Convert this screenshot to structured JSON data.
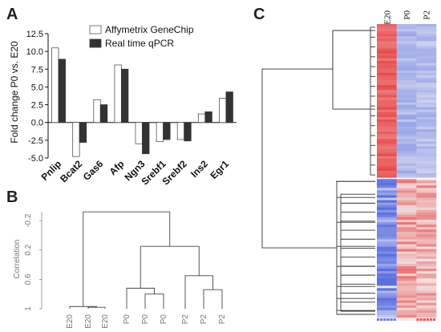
{
  "panels": {
    "a_label": "A",
    "b_label": "B",
    "c_label": "C"
  },
  "chart_data": [
    {
      "panel": "A",
      "type": "bar",
      "ylabel": "Fold change P0 vs. E20",
      "ylim": [
        -5.0,
        12.5
      ],
      "yticks": [
        -5.0,
        -2.5,
        0.0,
        2.5,
        5.0,
        7.5,
        10.0,
        12.5
      ],
      "ytick_labels": [
        "-5.0",
        "-2.5",
        "0.0",
        "2.5",
        "5.0",
        "7.5",
        "10.0",
        "12.5"
      ],
      "categories": [
        "Pnlip",
        "Bcat2",
        "Gas6",
        "Afp",
        "Ngn3",
        "Srebf1",
        "Srebf2",
        "Ins2",
        "Egr1"
      ],
      "series": [
        {
          "name": "Affymetrix GeneChip",
          "color": "#ffffff",
          "values": [
            10.5,
            -4.8,
            3.2,
            8.1,
            -3.0,
            -2.7,
            -2.4,
            1.2,
            3.4
          ]
        },
        {
          "name": "Real time qPCR",
          "color": "#333333",
          "values": [
            8.9,
            -2.8,
            2.5,
            7.5,
            -4.4,
            -2.4,
            -2.6,
            1.5,
            4.3
          ]
        }
      ],
      "legend": "top-right"
    },
    {
      "panel": "B",
      "type": "dendrogram",
      "ylabel": "Correlation",
      "yticks": [
        -0.2,
        0.2,
        0.6,
        1
      ],
      "ytick_labels": [
        "-0.2",
        "0.2",
        "0.6",
        "1"
      ],
      "leaves": [
        "E20",
        "E20",
        "E20",
        "P0",
        "P0",
        "P0",
        "P2",
        "P2",
        "P2"
      ],
      "merges": [
        {
          "a": 1,
          "b": 2,
          "height": 0.98
        },
        {
          "a": 0,
          "b": 9,
          "height": 0.97
        },
        {
          "a": 4,
          "b": 5,
          "height": 0.8
        },
        {
          "a": 3,
          "b": 11,
          "height": 0.72
        },
        {
          "a": 7,
          "b": 8,
          "height": 0.74
        },
        {
          "a": 6,
          "b": 13,
          "height": 0.55
        },
        {
          "a": 12,
          "b": 14,
          "height": 0.15
        },
        {
          "a": 10,
          "b": 15,
          "height": -0.32
        }
      ]
    },
    {
      "panel": "C",
      "type": "heatmap",
      "columns": [
        "E20",
        "P0",
        "P2"
      ],
      "colors": {
        "high": "#e8484a",
        "mid": "#f2f2f2",
        "low": "#5b6fe0"
      },
      "row_groups": [
        {
          "fraction": 0.528,
          "values": [
            0.85,
            -0.45,
            -0.4
          ]
        },
        {
          "fraction": 0.472,
          "values": [
            -0.85,
            0.45,
            0.4
          ]
        }
      ]
    }
  ]
}
